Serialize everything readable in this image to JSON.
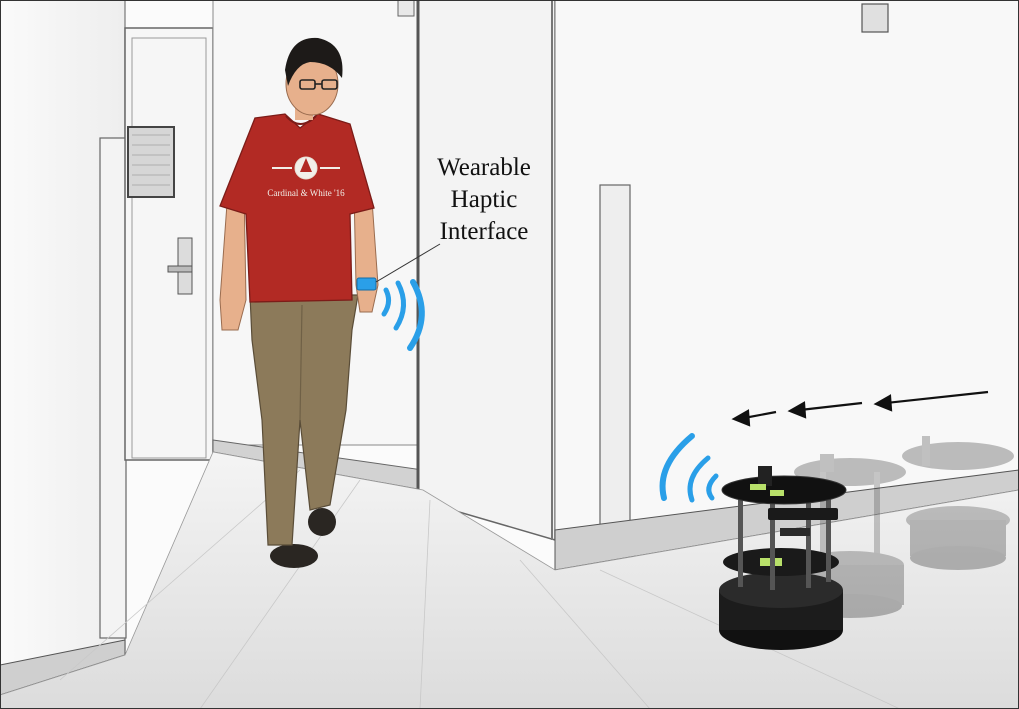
{
  "annotation": {
    "line1": "Wearable",
    "line2": "Haptic",
    "line3": "Interface"
  },
  "shirt_print": {
    "text": "Cardinal & White '16"
  },
  "colors": {
    "haptic_wave": "#2a9fe8",
    "shirt": "#b22a24",
    "pants": "#8c7a5a",
    "wristband": "#2a9fe8",
    "motion_arrow": "#111111"
  }
}
